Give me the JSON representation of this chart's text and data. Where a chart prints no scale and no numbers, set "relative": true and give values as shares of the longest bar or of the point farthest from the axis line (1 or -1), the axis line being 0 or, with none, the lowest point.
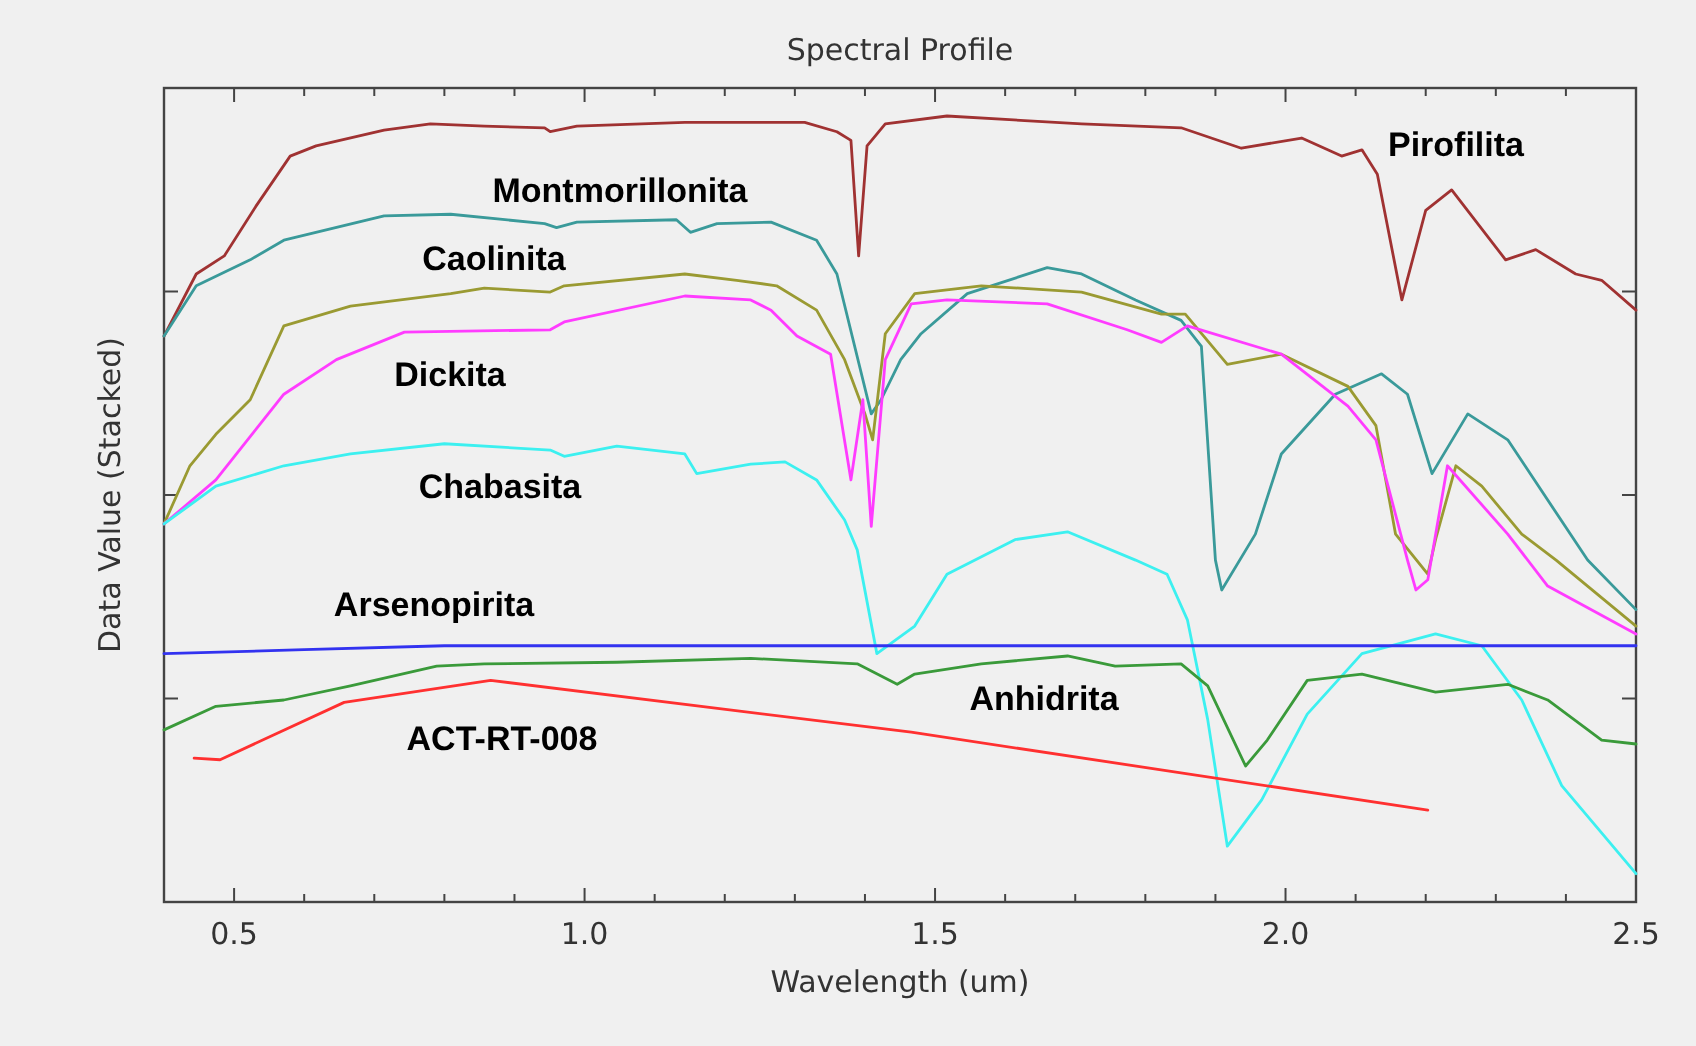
{
  "chart_data": {
    "type": "line",
    "title": "Spectral Profile",
    "xlabel": "Wavelength (um)",
    "ylabel": "Data Value (Stacked)",
    "relative": true,
    "xlim": [
      0.4,
      2.5
    ],
    "xticks": [
      0.5,
      {
        "value": 0.6,
        "label": null
      },
      {
        "value": 0.7,
        "label": null
      },
      {
        "value": 0.8,
        "label": null
      },
      {
        "value": 0.9,
        "label": null
      },
      {
        "value": 1,
        "label": "1.0"
      },
      {
        "value": 1.1,
        "label": null
      },
      {
        "value": 1.2,
        "label": null
      },
      {
        "value": 1.3,
        "label": null
      },
      {
        "value": 1.4,
        "label": null
      },
      1.5,
      {
        "value": 1.6,
        "label": null
      },
      {
        "value": 1.7,
        "label": null
      },
      {
        "value": 1.8,
        "label": null
      },
      {
        "value": 1.9,
        "label": null
      },
      {
        "value": 2,
        "label": "2.0"
      },
      {
        "value": 2.1,
        "label": null
      },
      {
        "value": 2.2,
        "label": null
      },
      {
        "value": 2.3,
        "label": null
      },
      {
        "value": 2.4,
        "label": null
      },
      2.5
    ],
    "series": [
      {
        "name": "Pirofilita",
        "color": "#a03232",
        "x": [
          0.4,
          0.446,
          0.486,
          0.531,
          0.58,
          0.617,
          0.714,
          0.78,
          0.857,
          0.943,
          0.951,
          0.989,
          1.143,
          1.314,
          1.36,
          1.38,
          1.391,
          1.403,
          1.429,
          1.517,
          1.709,
          1.851,
          1.937,
          2.023,
          2.08,
          2.109,
          2.131,
          2.166,
          2.2,
          2.237,
          2.314,
          2.357,
          2.414,
          2.451,
          2.5
        ],
        "values": [
          0.72,
          0.799,
          0.822,
          0.885,
          0.949,
          0.962,
          0.982,
          0.99,
          0.987,
          0.985,
          0.98,
          0.987,
          0.992,
          0.992,
          0.98,
          0.969,
          0.822,
          0.962,
          0.99,
          1,
          0.99,
          0.985,
          0.959,
          0.972,
          0.949,
          0.957,
          0.926,
          0.766,
          0.88,
          0.906,
          0.817,
          0.83,
          0.799,
          0.791,
          0.753
        ]
      },
      {
        "name": "Montmorillonita",
        "color": "#3a9a9a",
        "x": [
          0.4,
          0.446,
          0.523,
          0.571,
          0.714,
          0.809,
          0.943,
          0.96,
          0.989,
          1.131,
          1.151,
          1.189,
          1.266,
          1.331,
          1.36,
          1.409,
          1.423,
          1.451,
          1.48,
          1.546,
          1.66,
          1.709,
          1.786,
          1.851,
          1.88,
          1.9,
          1.909,
          1.957,
          1.994,
          2.071,
          2.137,
          2.174,
          2.209,
          2.26,
          2.317,
          2.431,
          2.5
        ],
        "values": [
          0.72,
          0.784,
          0.817,
          0.842,
          0.873,
          0.875,
          0.863,
          0.858,
          0.865,
          0.868,
          0.852,
          0.863,
          0.865,
          0.842,
          0.799,
          0.621,
          0.639,
          0.69,
          0.723,
          0.774,
          0.807,
          0.799,
          0.766,
          0.74,
          0.707,
          0.435,
          0.397,
          0.468,
          0.57,
          0.646,
          0.672,
          0.646,
          0.545,
          0.621,
          0.588,
          0.435,
          0.372
        ]
      },
      {
        "name": "Caolinita",
        "color": "#9a9a32",
        "x": [
          0.4,
          0.437,
          0.474,
          0.523,
          0.571,
          0.666,
          0.809,
          0.857,
          0.951,
          0.971,
          1.143,
          1.217,
          1.274,
          1.331,
          1.371,
          1.4,
          1.411,
          1.429,
          1.471,
          1.566,
          1.709,
          1.823,
          1.857,
          1.917,
          1.994,
          2.089,
          2.129,
          2.157,
          2.203,
          2.214,
          2.243,
          2.28,
          2.337,
          2.386,
          2.5
        ],
        "values": [
          0.481,
          0.555,
          0.595,
          0.639,
          0.733,
          0.758,
          0.774,
          0.781,
          0.776,
          0.784,
          0.799,
          0.791,
          0.784,
          0.753,
          0.69,
          0.621,
          0.588,
          0.723,
          0.774,
          0.784,
          0.776,
          0.748,
          0.748,
          0.684,
          0.697,
          0.656,
          0.606,
          0.468,
          0.417,
          0.461,
          0.555,
          0.529,
          0.468,
          0.435,
          0.351
        ]
      },
      {
        "name": "Dickita",
        "color": "#ff3cff",
        "x": [
          0.4,
          0.474,
          0.571,
          0.646,
          0.743,
          0.951,
          0.971,
          1.143,
          1.237,
          1.266,
          1.303,
          1.351,
          1.38,
          1.397,
          1.409,
          1.429,
          1.466,
          1.517,
          1.66,
          1.774,
          1.823,
          1.86,
          1.994,
          2.089,
          2.129,
          2.174,
          2.186,
          2.203,
          2.231,
          2.317,
          2.374,
          2.5
        ],
        "values": [
          0.481,
          0.537,
          0.646,
          0.69,
          0.725,
          0.728,
          0.738,
          0.771,
          0.766,
          0.753,
          0.72,
          0.697,
          0.537,
          0.639,
          0.478,
          0.69,
          0.761,
          0.766,
          0.761,
          0.728,
          0.712,
          0.733,
          0.697,
          0.631,
          0.588,
          0.435,
          0.397,
          0.41,
          0.555,
          0.468,
          0.402,
          0.341
        ]
      },
      {
        "name": "Chabasita",
        "color": "#3cf0f0",
        "x": [
          0.4,
          0.474,
          0.571,
          0.666,
          0.8,
          0.951,
          0.971,
          1.046,
          1.143,
          1.16,
          1.237,
          1.286,
          1.331,
          1.371,
          1.389,
          1.417,
          1.471,
          1.517,
          1.614,
          1.689,
          1.786,
          1.831,
          1.86,
          1.889,
          1.917,
          1.966,
          2.031,
          2.109,
          2.214,
          2.28,
          2.337,
          2.394,
          2.5
        ],
        "values": [
          0.481,
          0.529,
          0.555,
          0.57,
          0.583,
          0.575,
          0.567,
          0.58,
          0.57,
          0.545,
          0.557,
          0.56,
          0.537,
          0.486,
          0.448,
          0.316,
          0.351,
          0.417,
          0.461,
          0.471,
          0.435,
          0.417,
          0.359,
          0.232,
          0.071,
          0.13,
          0.239,
          0.316,
          0.341,
          0.326,
          0.257,
          0.148,
          0.036
        ]
      },
      {
        "name": "Arsenopirita",
        "color": "#3232f0",
        "x": [
          0.4,
          0.6,
          0.8,
          1,
          1.5,
          2,
          2.5
        ],
        "values": [
          0.316,
          0.321,
          0.326,
          0.326,
          0.326,
          0.326,
          0.326
        ]
      },
      {
        "name": "Anhidrita",
        "color": "#3a9a3a",
        "x": [
          0.4,
          0.474,
          0.571,
          0.666,
          0.789,
          0.857,
          1.046,
          1.237,
          1.389,
          1.446,
          1.471,
          1.566,
          1.689,
          1.757,
          1.851,
          1.889,
          1.943,
          1.974,
          2.031,
          2.109,
          2.214,
          2.317,
          2.374,
          2.451,
          2.5
        ],
        "values": [
          0.219,
          0.249,
          0.257,
          0.275,
          0.3,
          0.303,
          0.305,
          0.31,
          0.303,
          0.277,
          0.29,
          0.303,
          0.313,
          0.3,
          0.303,
          0.275,
          0.173,
          0.206,
          0.282,
          0.29,
          0.267,
          0.277,
          0.257,
          0.206,
          0.201
        ]
      },
      {
        "name": "ACT-RT-008",
        "color": "#ff3030",
        "x": [
          0.443,
          0.48,
          0.657,
          0.866,
          1.466,
          2.203
        ],
        "values": [
          0.183,
          0.181,
          0.254,
          0.282,
          0.216,
          0.117
        ]
      }
    ]
  }
}
